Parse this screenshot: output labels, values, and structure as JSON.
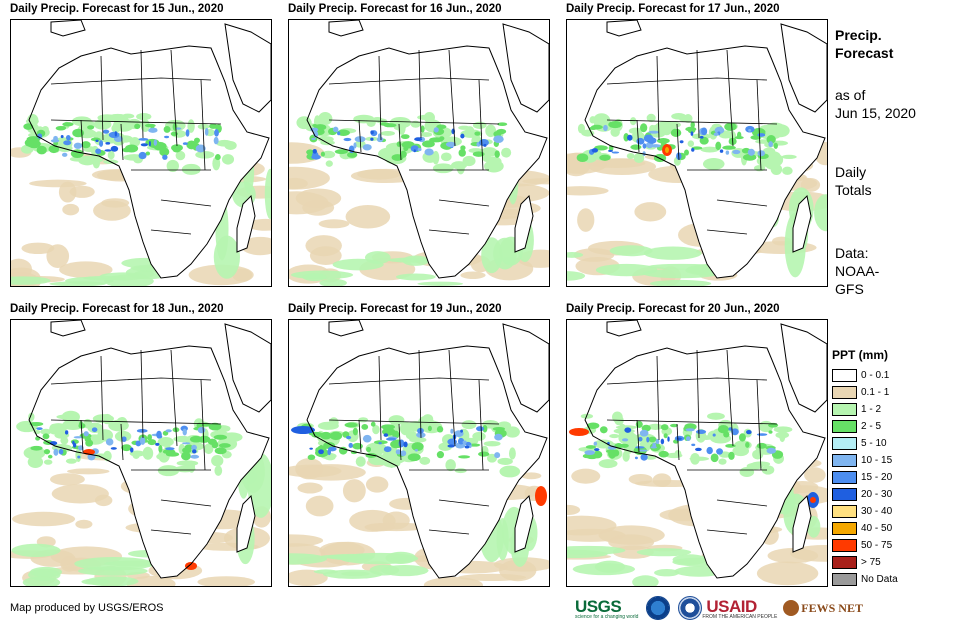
{
  "panels": [
    {
      "title": "Daily Precip. Forecast for 15 Jun., 2020"
    },
    {
      "title": "Daily Precip. Forecast for 16 Jun., 2020"
    },
    {
      "title": "Daily Precip. Forecast for 17 Jun., 2020"
    },
    {
      "title": "Daily Precip. Forecast for 18 Jun., 2020"
    },
    {
      "title": "Daily Precip. Forecast for 19 Jun., 2020"
    },
    {
      "title": "Daily Precip. Forecast for 20 Jun., 2020"
    }
  ],
  "side": {
    "title_line1": "Precip.",
    "title_line2": "Forecast",
    "asof_line1": "as of",
    "asof_line2": "Jun 15, 2020",
    "totals_line1": "Daily",
    "totals_line2": "Totals",
    "data_line1": "Data:",
    "data_line2": "NOAA-",
    "data_line3": "GFS"
  },
  "legend": {
    "title": "PPT (mm)",
    "items": [
      {
        "label": "0 - 0.1",
        "color": "#ffffff"
      },
      {
        "label": "0.1 - 1",
        "color": "#e9d6b3"
      },
      {
        "label": "1 - 2",
        "color": "#b6f5b0"
      },
      {
        "label": "2 - 5",
        "color": "#66e066"
      },
      {
        "label": "5 - 10",
        "color": "#b4eef5"
      },
      {
        "label": "10 - 15",
        "color": "#7fb5f0"
      },
      {
        "label": "15 - 20",
        "color": "#4d8ef0"
      },
      {
        "label": "20 - 30",
        "color": "#1f5fe0"
      },
      {
        "label": "30 - 40",
        "color": "#ffe080"
      },
      {
        "label": "40 - 50",
        "color": "#f5a800"
      },
      {
        "label": "50 - 75",
        "color": "#ff3a00"
      },
      {
        "label": "> 75",
        "color": "#a8201a"
      },
      {
        "label": "No Data",
        "color": "#9a9a9a"
      }
    ]
  },
  "credit": "Map produced by USGS/EROS",
  "logos": {
    "usgs": "USGS",
    "usgs_tagline": "science for a changing world",
    "usaid": "USAID",
    "usaid_tagline": "FROM THE AMERICAN PEOPLE",
    "fews": "FEWS NET"
  }
}
